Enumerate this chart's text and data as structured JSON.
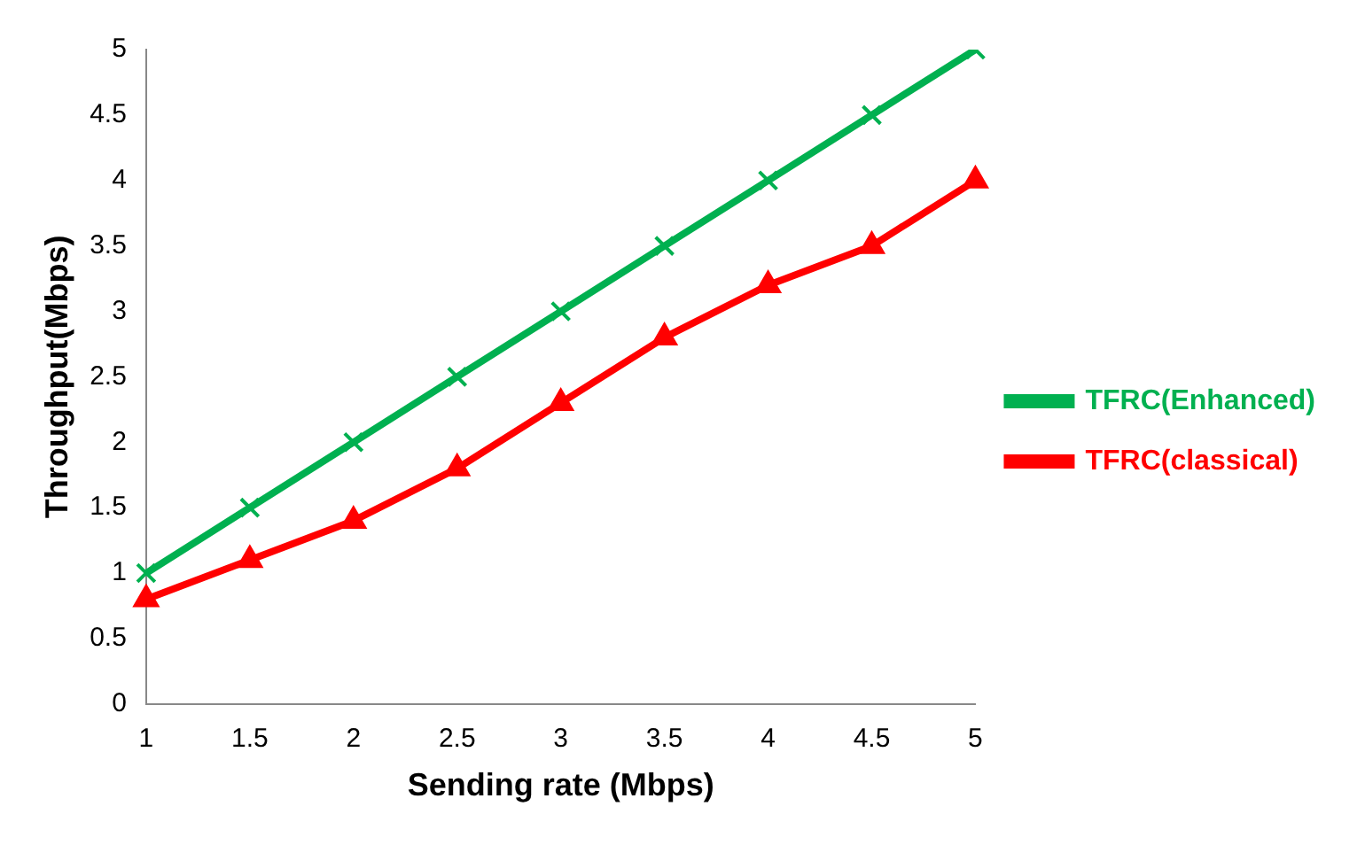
{
  "chart_data": {
    "type": "line",
    "xlabel": "Sending rate (Mbps)",
    "ylabel": "Throughput(Mbps)",
    "categories": [
      "1",
      "1.5",
      "2",
      "2.5",
      "3",
      "3.5",
      "4",
      "4.5",
      "5"
    ],
    "ylim": [
      0,
      5
    ],
    "yticks": [
      0,
      0.5,
      1,
      1.5,
      2,
      2.5,
      3,
      3.5,
      4,
      4.5,
      5
    ],
    "grid": false,
    "legend": "right",
    "line_style": "solid",
    "series": [
      {
        "name": "TFRC(Enhanced)",
        "color": "#00b050",
        "marker": "cross",
        "values": [
          1,
          1.5,
          2,
          2.5,
          3,
          3.5,
          4,
          4.5,
          5
        ]
      },
      {
        "name": "TFRC(classical)",
        "color": "#ff0000",
        "marker": "triangle",
        "values": [
          0.8,
          1.1,
          1.4,
          1.8,
          2.3,
          2.8,
          3.2,
          3.5,
          4.0
        ]
      }
    ]
  }
}
